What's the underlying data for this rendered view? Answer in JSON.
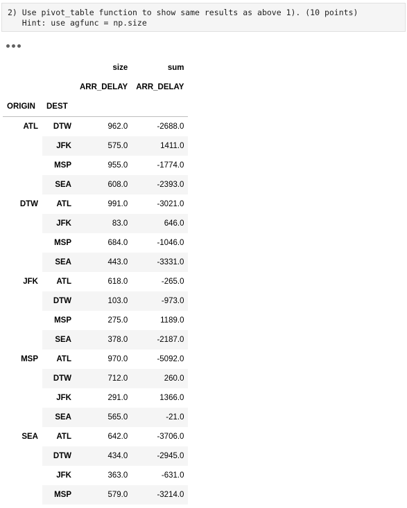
{
  "cell": {
    "code_lines": [
      "2) Use pivot_table function to show same results as above 1). (10 points)",
      "   Hint: use agfunc = np.size"
    ]
  },
  "output": {
    "header_level0": [
      "size",
      "sum"
    ],
    "header_level1": [
      "ARR_DELAY",
      "ARR_DELAY"
    ],
    "index_names": [
      "ORIGIN",
      "DEST"
    ]
  },
  "rows": [
    {
      "origin": "ATL",
      "dest": "DTW",
      "size": "962.0",
      "sum": "-2688.0"
    },
    {
      "origin": "",
      "dest": "JFK",
      "size": "575.0",
      "sum": "1411.0"
    },
    {
      "origin": "",
      "dest": "MSP",
      "size": "955.0",
      "sum": "-1774.0"
    },
    {
      "origin": "",
      "dest": "SEA",
      "size": "608.0",
      "sum": "-2393.0"
    },
    {
      "origin": "DTW",
      "dest": "ATL",
      "size": "991.0",
      "sum": "-3021.0"
    },
    {
      "origin": "",
      "dest": "JFK",
      "size": "83.0",
      "sum": "646.0"
    },
    {
      "origin": "",
      "dest": "MSP",
      "size": "684.0",
      "sum": "-1046.0"
    },
    {
      "origin": "",
      "dest": "SEA",
      "size": "443.0",
      "sum": "-3331.0"
    },
    {
      "origin": "JFK",
      "dest": "ATL",
      "size": "618.0",
      "sum": "-265.0"
    },
    {
      "origin": "",
      "dest": "DTW",
      "size": "103.0",
      "sum": "-973.0"
    },
    {
      "origin": "",
      "dest": "MSP",
      "size": "275.0",
      "sum": "1189.0"
    },
    {
      "origin": "",
      "dest": "SEA",
      "size": "378.0",
      "sum": "-2187.0"
    },
    {
      "origin": "MSP",
      "dest": "ATL",
      "size": "970.0",
      "sum": "-5092.0"
    },
    {
      "origin": "",
      "dest": "DTW",
      "size": "712.0",
      "sum": "260.0"
    },
    {
      "origin": "",
      "dest": "JFK",
      "size": "291.0",
      "sum": "1366.0"
    },
    {
      "origin": "",
      "dest": "SEA",
      "size": "565.0",
      "sum": "-21.0"
    },
    {
      "origin": "SEA",
      "dest": "ATL",
      "size": "642.0",
      "sum": "-3706.0"
    },
    {
      "origin": "",
      "dest": "DTW",
      "size": "434.0",
      "sum": "-2945.0"
    },
    {
      "origin": "",
      "dest": "JFK",
      "size": "363.0",
      "sum": "-631.0"
    },
    {
      "origin": "",
      "dest": "MSP",
      "size": "579.0",
      "sum": "-3214.0"
    }
  ]
}
